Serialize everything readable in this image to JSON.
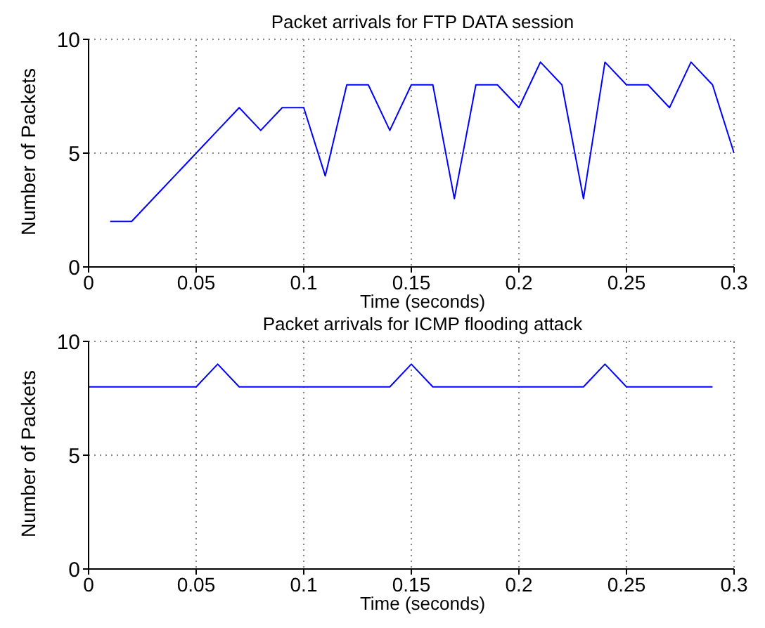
{
  "chart_data": [
    {
      "type": "line",
      "title": "Packet arrivals for FTP DATA session",
      "xlabel": "Time (seconds)",
      "ylabel": "Number of Packets",
      "x": [
        0.01,
        0.02,
        0.03,
        0.04,
        0.05,
        0.06,
        0.07,
        0.08,
        0.09,
        0.1,
        0.11,
        0.12,
        0.13,
        0.14,
        0.15,
        0.16,
        0.17,
        0.18,
        0.19,
        0.2,
        0.21,
        0.22,
        0.23,
        0.24,
        0.25,
        0.26,
        0.27,
        0.28,
        0.29,
        0.3
      ],
      "series": [
        {
          "color": "#0000ff",
          "values": [
            2,
            2,
            3,
            4,
            5,
            6,
            7,
            6,
            7,
            7,
            4,
            8,
            8,
            6,
            8,
            8,
            3,
            8,
            8,
            7,
            9,
            8,
            3,
            9,
            8,
            8,
            7,
            9,
            8,
            5
          ]
        }
      ],
      "xlim": [
        0,
        0.3
      ],
      "xticks": [
        0,
        0.05,
        0.1,
        0.15,
        0.2,
        0.25,
        0.3
      ],
      "ylim": [
        0,
        10
      ],
      "yticks": [
        0,
        5,
        10
      ],
      "grid": true
    },
    {
      "type": "line",
      "title": "Packet arrivals for ICMP flooding attack",
      "xlabel": "Time (seconds)",
      "ylabel": "Number of Packets",
      "x": [
        0,
        0.01,
        0.02,
        0.03,
        0.04,
        0.05,
        0.06,
        0.07,
        0.08,
        0.09,
        0.1,
        0.11,
        0.12,
        0.13,
        0.14,
        0.15,
        0.16,
        0.17,
        0.18,
        0.19,
        0.2,
        0.21,
        0.22,
        0.23,
        0.24,
        0.25,
        0.26,
        0.27,
        0.28,
        0.29
      ],
      "series": [
        {
          "color": "#0000ff",
          "values": [
            8,
            8,
            8,
            8,
            8,
            8,
            9,
            8,
            8,
            8,
            8,
            8,
            8,
            8,
            8,
            9,
            8,
            8,
            8,
            8,
            8,
            8,
            8,
            8,
            9,
            8,
            8,
            8,
            8,
            8
          ]
        }
      ],
      "xlim": [
        0,
        0.3
      ],
      "xticks": [
        0,
        0.05,
        0.1,
        0.15,
        0.2,
        0.25,
        0.3
      ],
      "ylim": [
        0,
        10
      ],
      "yticks": [
        0,
        5,
        10
      ],
      "grid": true
    }
  ]
}
